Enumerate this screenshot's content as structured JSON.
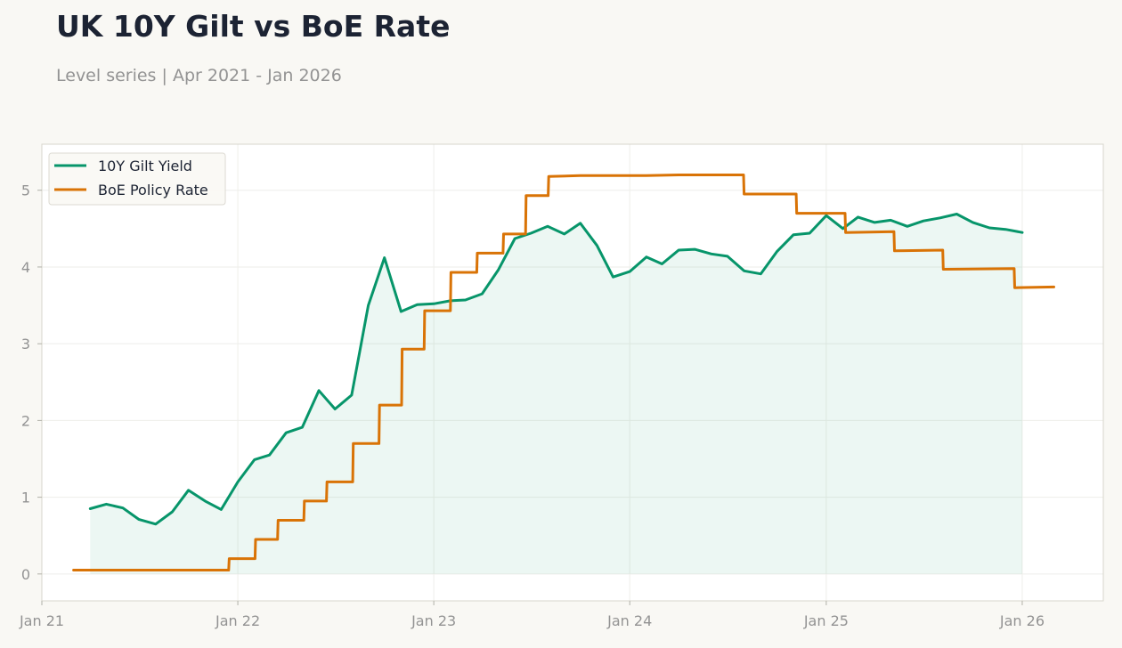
{
  "header": {
    "title": "UK 10Y Gilt vs BoE Rate",
    "subtitle": "Level series | Apr 2021 - Jan 2026"
  },
  "colors": {
    "gilt": "#07956a",
    "boe": "#d97306",
    "grid": "#eeeeea",
    "frame": "#d8d6cc",
    "plot_bg": "#ffffff",
    "page_bg": "#f9f8f4"
  },
  "chart_data": {
    "type": "line",
    "title": "UK 10Y Gilt vs BoE Rate",
    "subtitle": "Level series | Apr 2021 - Jan 2026",
    "xlabel": "",
    "ylabel": "",
    "x_axis": "date",
    "xlim": [
      "2021-01-01",
      "2026-06-01"
    ],
    "ylim": [
      -0.35,
      5.6
    ],
    "x_ticks": [
      {
        "date": "2021-01-01",
        "label": "Jan 21"
      },
      {
        "date": "2022-01-01",
        "label": "Jan 22"
      },
      {
        "date": "2023-01-01",
        "label": "Jan 23"
      },
      {
        "date": "2024-01-01",
        "label": "Jan 24"
      },
      {
        "date": "2025-01-01",
        "label": "Jan 25"
      },
      {
        "date": "2026-01-01",
        "label": "Jan 26"
      }
    ],
    "y_ticks": [
      0,
      1,
      2,
      3,
      4,
      5
    ],
    "grid": true,
    "legend": "top-left",
    "series": [
      {
        "name": "10Y Gilt Yield",
        "style": "line-with-area-fill",
        "points": [
          [
            "2021-04-01",
            0.85
          ],
          [
            "2021-05-01",
            0.91
          ],
          [
            "2021-06-01",
            0.86
          ],
          [
            "2021-07-01",
            0.71
          ],
          [
            "2021-08-01",
            0.65
          ],
          [
            "2021-09-01",
            0.81
          ],
          [
            "2021-10-01",
            1.09
          ],
          [
            "2021-11-01",
            0.95
          ],
          [
            "2021-12-01",
            0.84
          ],
          [
            "2022-01-01",
            1.2
          ],
          [
            "2022-02-01",
            1.49
          ],
          [
            "2022-03-01",
            1.55
          ],
          [
            "2022-04-01",
            1.84
          ],
          [
            "2022-05-01",
            1.91
          ],
          [
            "2022-06-01",
            2.39
          ],
          [
            "2022-07-01",
            2.15
          ],
          [
            "2022-08-01",
            2.33
          ],
          [
            "2022-09-01",
            3.5
          ],
          [
            "2022-10-01",
            4.12
          ],
          [
            "2022-11-01",
            3.42
          ],
          [
            "2022-12-01",
            3.51
          ],
          [
            "2023-01-01",
            3.52
          ],
          [
            "2023-02-01",
            3.56
          ],
          [
            "2023-03-01",
            3.57
          ],
          [
            "2023-04-01",
            3.65
          ],
          [
            "2023-05-01",
            3.96
          ],
          [
            "2023-06-01",
            4.37
          ],
          [
            "2023-07-01",
            4.44
          ],
          [
            "2023-08-01",
            4.53
          ],
          [
            "2023-09-01",
            4.43
          ],
          [
            "2023-10-01",
            4.57
          ],
          [
            "2023-11-01",
            4.28
          ],
          [
            "2023-12-01",
            3.87
          ],
          [
            "2024-01-01",
            3.94
          ],
          [
            "2024-02-01",
            4.13
          ],
          [
            "2024-03-01",
            4.04
          ],
          [
            "2024-04-01",
            4.22
          ],
          [
            "2024-05-01",
            4.23
          ],
          [
            "2024-06-01",
            4.17
          ],
          [
            "2024-07-01",
            4.14
          ],
          [
            "2024-08-01",
            3.95
          ],
          [
            "2024-09-01",
            3.91
          ],
          [
            "2024-10-01",
            4.2
          ],
          [
            "2024-11-01",
            4.42
          ],
          [
            "2024-12-01",
            4.44
          ],
          [
            "2025-01-01",
            4.67
          ],
          [
            "2025-02-01",
            4.5
          ],
          [
            "2025-03-01",
            4.65
          ],
          [
            "2025-04-01",
            4.58
          ],
          [
            "2025-05-01",
            4.61
          ],
          [
            "2025-06-01",
            4.53
          ],
          [
            "2025-07-01",
            4.6
          ],
          [
            "2025-08-01",
            4.64
          ],
          [
            "2025-09-01",
            4.69
          ],
          [
            "2025-10-01",
            4.58
          ],
          [
            "2025-11-01",
            4.51
          ],
          [
            "2025-12-01",
            4.49
          ],
          [
            "2026-01-01",
            4.45
          ]
        ]
      },
      {
        "name": "BoE Policy Rate",
        "style": "step-line",
        "points": [
          [
            "2021-03-01",
            0.05
          ],
          [
            "2021-06-01",
            0.05
          ],
          [
            "2021-09-01",
            0.05
          ],
          [
            "2021-12-01",
            0.05
          ],
          [
            "2021-12-15",
            0.05
          ],
          [
            "2021-12-16",
            0.2
          ],
          [
            "2022-02-02",
            0.2
          ],
          [
            "2022-02-03",
            0.45
          ],
          [
            "2022-03-16",
            0.45
          ],
          [
            "2022-03-17",
            0.7
          ],
          [
            "2022-05-04",
            0.7
          ],
          [
            "2022-05-05",
            0.95
          ],
          [
            "2022-06-15",
            0.95
          ],
          [
            "2022-06-16",
            1.2
          ],
          [
            "2022-08-03",
            1.2
          ],
          [
            "2022-08-04",
            1.7
          ],
          [
            "2022-09-21",
            1.7
          ],
          [
            "2022-09-22",
            2.2
          ],
          [
            "2022-11-02",
            2.2
          ],
          [
            "2022-11-03",
            2.93
          ],
          [
            "2022-12-14",
            2.93
          ],
          [
            "2022-12-15",
            3.43
          ],
          [
            "2023-02-01",
            3.43
          ],
          [
            "2023-02-02",
            3.93
          ],
          [
            "2023-03-22",
            3.93
          ],
          [
            "2023-03-23",
            4.18
          ],
          [
            "2023-05-10",
            4.18
          ],
          [
            "2023-05-11",
            4.43
          ],
          [
            "2023-06-21",
            4.43
          ],
          [
            "2023-06-22",
            4.93
          ],
          [
            "2023-08-02",
            4.93
          ],
          [
            "2023-08-03",
            5.18
          ],
          [
            "2023-10-01",
            5.19
          ],
          [
            "2024-02-01",
            5.19
          ],
          [
            "2024-04-01",
            5.2
          ],
          [
            "2024-07-31",
            5.2
          ],
          [
            "2024-08-01",
            4.95
          ],
          [
            "2024-11-06",
            4.95
          ],
          [
            "2024-11-07",
            4.7
          ],
          [
            "2025-02-05",
            4.7
          ],
          [
            "2025-02-06",
            4.45
          ],
          [
            "2025-05-07",
            4.46
          ],
          [
            "2025-05-08",
            4.21
          ],
          [
            "2025-08-06",
            4.22
          ],
          [
            "2025-08-07",
            3.97
          ],
          [
            "2025-12-17",
            3.98
          ],
          [
            "2025-12-18",
            3.73
          ],
          [
            "2026-03-01",
            3.74
          ]
        ]
      }
    ]
  }
}
